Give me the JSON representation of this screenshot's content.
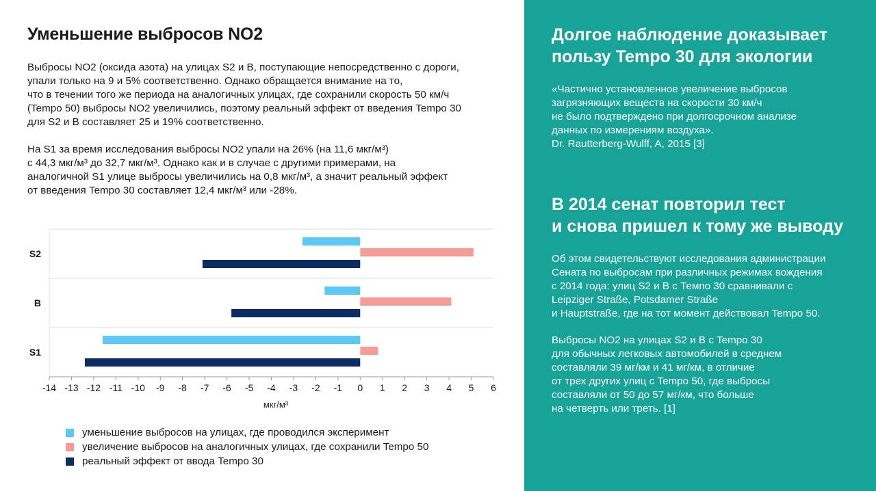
{
  "left": {
    "title": "Уменьшение выбросов NO2",
    "paragraph1": [
      "Выбросы NO2 (оксида азота) на улицах S2 и B, поступающие непосредственно с дороги,",
      "упали только на 9 и 5% соответственно. Однако обращается внимание на то,",
      "что в течении того же периода на аналогичных улицах, где сохранили скорость 50 км/ч",
      "(Tempo 50) выбросы NO2 увеличились, поэтому реальный эффект от введения Tempo 30",
      "для S2 и B составляет 25 и 19% соответственно."
    ],
    "paragraph2": [
      "На S1 за время исследования выбросы NO2 упали на 26% (на 11,6 мкг/м³)",
      "с 44,3 мкг/м³ до 32,7 мкг/м³. Однако как и в случае с другими примерами, на",
      "аналогичной S1 улице выбросы увеличились на 0,8 мкг/м³, а значит реальный эффект",
      "от введения Tempo 30 составляет 12,4 мкг/м³ или -28%."
    ]
  },
  "right": {
    "heading1": [
      "Долгое наблюдение доказывает",
      "пользу Tempo 30 для экологии"
    ],
    "quote": [
      "«Частично установленное увеличение выбросов",
      "загрязняющих веществ на скорости 30 км/ч",
      "не было подтверждено при долгосрочном анализе",
      "данных по измерениям воздуха».",
      "Dr. Rautterberg-Wulff, A, 2015 [3]"
    ],
    "heading2": [
      "В 2014 сенат повторил тест",
      "и снова пришел к тому же выводу"
    ],
    "paragraph1": [
      "Об этом свидетельствуют исследования администрации",
      "Сената по выбросам при различных режимах вождения",
      "с 2014 года: улиц S2 и B с Темпо 30 сравнивали с",
      "Leipziger Straße, Potsdamer Straße",
      "и Hauptstraße, где на тот момент действовал Tempo 50."
    ],
    "paragraph2": [
      "Выбросы NO2 на улицах S2 и B с Tempo 30",
      "для обычных легковых автомобилей в среднем",
      "составляли 39 мг/км и 41 мг/км, в отличие",
      "от трех других улиц с Tempo 50, где выбросы",
      "составляли от 50 до 57 мг/км, что больше",
      "на четверть или треть. [1]"
    ]
  },
  "colors": {
    "accent_panel": "#17a398",
    "series_reduction": "#5bc8f5",
    "series_increase": "#f79c94",
    "series_effect": "#0d2c64"
  },
  "chart_data": {
    "type": "bar",
    "orientation": "horizontal",
    "categories": [
      "S2",
      "B",
      "S1"
    ],
    "series": [
      {
        "name": "уменьшение выбросов на улицах, где проводился эксперимент",
        "values": [
          -2.6,
          -1.6,
          -11.6
        ],
        "color": "#5bc8f5"
      },
      {
        "name": "увеличение выбросов на аналогичных улицах, где сохранили Tempo 50",
        "values": [
          5.1,
          4.1,
          0.8
        ],
        "color": "#f79c94"
      },
      {
        "name": "реальный эффект от ввода Tempo 30",
        "values": [
          -7.1,
          -5.8,
          -12.4
        ],
        "color": "#0d2c64"
      }
    ],
    "xlabel": "мкг/м³",
    "xlim": [
      -14,
      6
    ],
    "xticks": [
      -14,
      -13,
      -12,
      -11,
      -10,
      -9,
      -8,
      -7,
      -6,
      -5,
      -4,
      -3,
      -2,
      -1,
      0,
      1,
      2,
      3,
      4,
      5,
      6
    ],
    "grid": "horizontal separators",
    "legend_position": "bottom"
  }
}
